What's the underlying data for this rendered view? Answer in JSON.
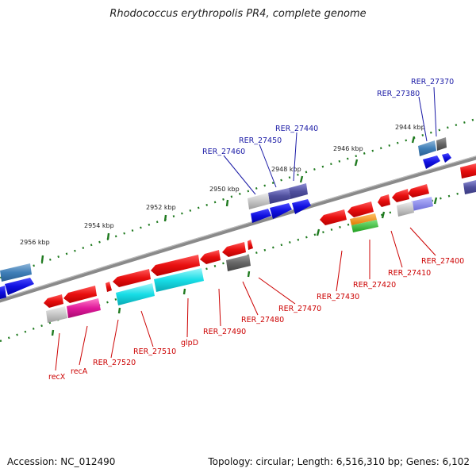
{
  "title": "Rhodococcus erythropolis PR4, complete genome",
  "footer": {
    "accession": "Accession: NC_012490",
    "summary": "Topology: circular; Length: 6,516,310 bp; Genes: 6,102"
  },
  "scale_labels": [
    "2944 kbp",
    "2946 kbp",
    "2948 kbp",
    "2950 kbp",
    "2952 kbp",
    "2954 kbp",
    "2956 kbp"
  ],
  "genes_forward": [
    "RER_27370",
    "RER_27380",
    "RER_27440",
    "RER_27450",
    "RER_27460"
  ],
  "genes_reverse": [
    "RER_27400",
    "RER_27410",
    "RER_27420",
    "RER_27430",
    "RER_27470",
    "RER_27480",
    "RER_27490",
    "glpD",
    "RER_27510",
    "RER_27520",
    "recA",
    "recX"
  ],
  "colors": {
    "forward_label": "#1a1aa6",
    "reverse_label": "#cc0000",
    "backbone": "#8a8a8a",
    "tick": "#1f7a1f",
    "gene_red": "#e11b1b",
    "gene_blue": "#1515dd",
    "gene_cyan": "#16d8e0",
    "gene_magenta": "#e0199a",
    "gene_grey": "#6c6c6c"
  }
}
